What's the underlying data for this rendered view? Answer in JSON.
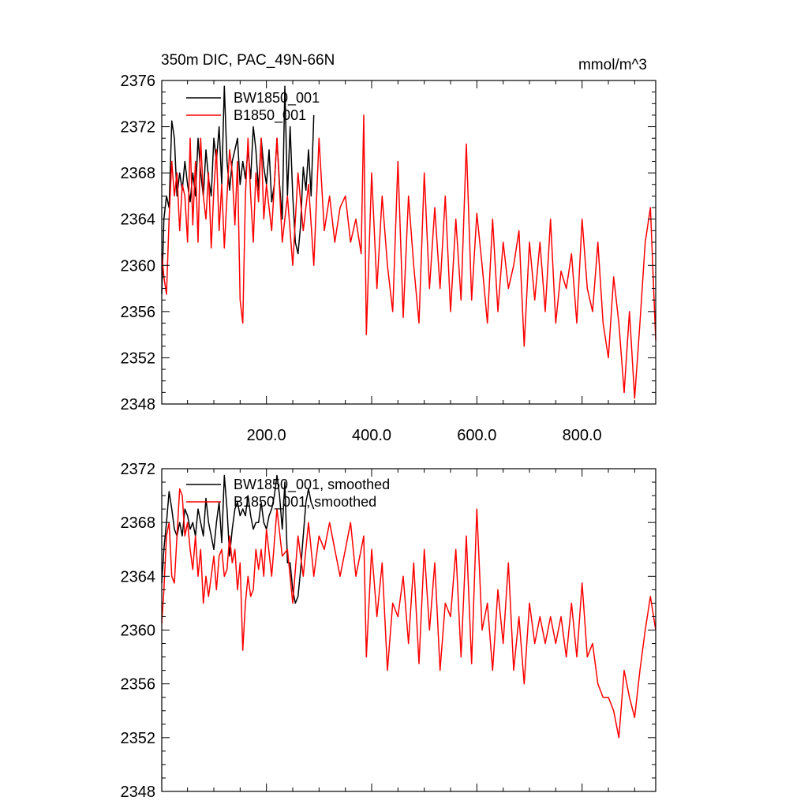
{
  "figure": {
    "title_left": "350m DIC, PAC_49N-66N",
    "title_right": "mmol/m^3"
  },
  "chart_data": [
    {
      "type": "line",
      "title": "350m DIC, PAC_49N-66N",
      "units": "mmol/m^3",
      "xlabel": "",
      "ylabel": "",
      "xlim": [
        1,
        940
      ],
      "ylim": [
        2348,
        2376
      ],
      "xticks": [
        200,
        400,
        600,
        800
      ],
      "xtick_labels": [
        "200.0",
        "400.0",
        "600.0",
        "800.0"
      ],
      "yticks": [
        2348,
        2352,
        2356,
        2360,
        2364,
        2368,
        2372,
        2376
      ],
      "ytick_labels": [
        "2348",
        "2352",
        "2356",
        "2360",
        "2364",
        "2368",
        "2372",
        "2376"
      ],
      "grid": false,
      "legend_position": "top-left",
      "series": [
        {
          "name": "BW1850_001",
          "color": "#000000",
          "x": [
            1,
            5,
            10,
            15,
            20,
            25,
            30,
            35,
            40,
            45,
            50,
            55,
            60,
            65,
            70,
            75,
            80,
            85,
            90,
            95,
            100,
            105,
            110,
            115,
            120,
            125,
            130,
            135,
            140,
            145,
            150,
            155,
            160,
            165,
            170,
            175,
            180,
            185,
            190,
            195,
            200,
            205,
            210,
            215,
            220,
            225,
            230,
            235,
            240,
            245,
            250,
            255,
            260,
            265,
            270,
            275,
            280,
            285,
            290
          ],
          "values": [
            2357.5,
            2364,
            2366,
            2365,
            2372.5,
            2371,
            2366,
            2368,
            2366.5,
            2369,
            2367,
            2365.5,
            2368,
            2366,
            2371,
            2368,
            2366,
            2370,
            2367.5,
            2366,
            2371,
            2369,
            2372,
            2367,
            2375.5,
            2369,
            2366.5,
            2369,
            2370,
            2371,
            2367,
            2369,
            2367.5,
            2370,
            2367.5,
            2372,
            2370,
            2366.5,
            2371,
            2368.5,
            2367,
            2370,
            2365.5,
            2367,
            2371,
            2367,
            2364,
            2375.5,
            2366,
            2372,
            2366,
            2362,
            2361,
            2363.5,
            2368.5,
            2366.5,
            2370,
            2366,
            2373
          ]
        },
        {
          "name": "B1850_001",
          "color": "#ff0000",
          "x": [
            1,
            5,
            10,
            15,
            20,
            25,
            30,
            35,
            40,
            45,
            50,
            55,
            60,
            65,
            70,
            75,
            80,
            85,
            90,
            95,
            100,
            105,
            110,
            115,
            120,
            125,
            130,
            135,
            140,
            145,
            150,
            155,
            160,
            165,
            170,
            175,
            180,
            185,
            190,
            195,
            200,
            210,
            220,
            230,
            240,
            250,
            260,
            270,
            280,
            290,
            300,
            310,
            320,
            330,
            340,
            350,
            360,
            370,
            380,
            385,
            390,
            400,
            410,
            420,
            430,
            440,
            450,
            460,
            470,
            480,
            490,
            500,
            510,
            520,
            530,
            540,
            550,
            560,
            570,
            580,
            590,
            600,
            610,
            620,
            630,
            640,
            650,
            660,
            670,
            680,
            690,
            700,
            710,
            720,
            730,
            740,
            750,
            760,
            770,
            780,
            790,
            800,
            810,
            820,
            830,
            840,
            850,
            860,
            870,
            880,
            890,
            900,
            910,
            920,
            930,
            940
          ],
          "values": [
            2361,
            2359,
            2357.5,
            2364,
            2369,
            2366,
            2368,
            2363,
            2367,
            2366,
            2362,
            2371,
            2363.5,
            2369,
            2362,
            2371,
            2366,
            2364,
            2368,
            2361.5,
            2366.5,
            2370,
            2363,
            2367,
            2361.5,
            2366,
            2370,
            2368,
            2363.5,
            2369,
            2357,
            2355,
            2366,
            2371,
            2366,
            2362,
            2368,
            2365.5,
            2371,
            2364,
            2367,
            2363,
            2371,
            2362,
            2366,
            2360,
            2368,
            2363,
            2367,
            2360,
            2371,
            2363,
            2366,
            2362,
            2365,
            2366,
            2362,
            2364,
            2361,
            2373,
            2354,
            2368,
            2358,
            2366,
            2360,
            2356,
            2369,
            2355.5,
            2366,
            2360,
            2355,
            2368,
            2358,
            2365,
            2358,
            2366,
            2356,
            2364,
            2357,
            2370.5,
            2357,
            2364.5,
            2360,
            2355,
            2364,
            2356,
            2362,
            2358,
            2360,
            2363,
            2353,
            2362,
            2357,
            2362,
            2356,
            2364,
            2355,
            2359.5,
            2358,
            2361,
            2355,
            2364,
            2358,
            2356,
            2362,
            2355,
            2352,
            2359,
            2355,
            2349,
            2356,
            2348.5,
            2355,
            2362,
            2365,
            2353.5
          ]
        }
      ]
    },
    {
      "type": "line",
      "title": "",
      "xlabel": "",
      "ylabel": "",
      "xlim": [
        1,
        940
      ],
      "ylim": [
        2348,
        2372
      ],
      "xticks": [
        200,
        400,
        600,
        800
      ],
      "xtick_labels": [],
      "yticks": [
        2348,
        2352,
        2356,
        2360,
        2364,
        2368,
        2372
      ],
      "ytick_labels": [
        "2348",
        "2352",
        "2356",
        "2360",
        "2364",
        "2368",
        "2372"
      ],
      "grid": false,
      "legend_position": "top-left",
      "series": [
        {
          "name": "BW1850_001, smoothed",
          "color": "#000000",
          "x": [
            1,
            5,
            10,
            15,
            20,
            25,
            30,
            35,
            40,
            45,
            50,
            55,
            60,
            65,
            70,
            75,
            80,
            85,
            90,
            95,
            100,
            105,
            110,
            115,
            120,
            125,
            130,
            135,
            140,
            145,
            150,
            155,
            160,
            165,
            170,
            175,
            180,
            185,
            190,
            195,
            200,
            205,
            210,
            215,
            220,
            225,
            230,
            235,
            240,
            245,
            250,
            255,
            260,
            265,
            270,
            275,
            280,
            285,
            290
          ],
          "values": [
            2363.5,
            2366,
            2368,
            2370.3,
            2369,
            2367.5,
            2367,
            2368,
            2367,
            2369,
            2368.5,
            2367.5,
            2368,
            2367,
            2369,
            2368,
            2367,
            2369.8,
            2368,
            2367,
            2366,
            2368,
            2369.5,
            2366.5,
            2371.5,
            2369,
            2365.5,
            2367.5,
            2369,
            2369.5,
            2368.5,
            2369,
            2368.5,
            2370,
            2368.5,
            2367.5,
            2368,
            2368,
            2369.5,
            2368,
            2367.5,
            2368.5,
            2369,
            2370,
            2371.5,
            2370,
            2367.5,
            2371,
            2365,
            2365,
            2363,
            2362,
            2362.5,
            2364.5,
            2367,
            2369.5,
            2370.5,
            2369.5,
            2369
          ]
        },
        {
          "name": "B1850_001, smoothed",
          "color": "#ff0000",
          "x": [
            1,
            5,
            10,
            15,
            20,
            25,
            30,
            35,
            40,
            45,
            50,
            55,
            60,
            65,
            70,
            75,
            80,
            85,
            90,
            95,
            100,
            105,
            110,
            115,
            120,
            125,
            130,
            135,
            140,
            145,
            150,
            155,
            160,
            165,
            170,
            175,
            180,
            185,
            190,
            195,
            200,
            210,
            220,
            230,
            240,
            250,
            260,
            270,
            280,
            290,
            300,
            310,
            320,
            330,
            340,
            350,
            360,
            370,
            380,
            385,
            390,
            400,
            410,
            420,
            430,
            440,
            450,
            460,
            470,
            480,
            490,
            500,
            510,
            520,
            530,
            540,
            550,
            560,
            570,
            580,
            590,
            600,
            610,
            620,
            630,
            640,
            650,
            660,
            670,
            680,
            690,
            700,
            710,
            720,
            730,
            740,
            750,
            760,
            770,
            780,
            790,
            800,
            810,
            820,
            830,
            840,
            850,
            860,
            870,
            880,
            890,
            900,
            910,
            920,
            930,
            940
          ],
          "values": [
            2360.5,
            2363,
            2367,
            2368,
            2364,
            2363.5,
            2367,
            2370.5,
            2370,
            2367,
            2368,
            2366,
            2364.5,
            2367,
            2364,
            2366,
            2362,
            2364,
            2362.5,
            2364,
            2365.5,
            2363,
            2365.5,
            2366,
            2364,
            2364.5,
            2367,
            2365,
            2366,
            2363,
            2365,
            2358.5,
            2362,
            2364,
            2362.5,
            2363,
            2366,
            2364.5,
            2366,
            2364,
            2367.5,
            2364,
            2369,
            2365.5,
            2366,
            2362,
            2367,
            2364,
            2368,
            2364,
            2367,
            2366,
            2368,
            2366,
            2364,
            2366,
            2368,
            2364,
            2366,
            2367,
            2358,
            2366,
            2361,
            2365,
            2357,
            2362,
            2361,
            2364,
            2359,
            2365,
            2357.5,
            2366,
            2360,
            2365,
            2357,
            2362,
            2361,
            2366,
            2358,
            2367,
            2357.5,
            2369,
            2360,
            2362,
            2357,
            2363,
            2359,
            2365,
            2357,
            2361,
            2356,
            2362,
            2359,
            2361,
            2359,
            2361,
            2359,
            2361,
            2358,
            2362,
            2358,
            2363.5,
            2358,
            2359,
            2356,
            2355,
            2355,
            2354,
            2352,
            2357,
            2355,
            2353.5,
            2357,
            2360,
            2362.5,
            2360
          ]
        }
      ]
    }
  ]
}
